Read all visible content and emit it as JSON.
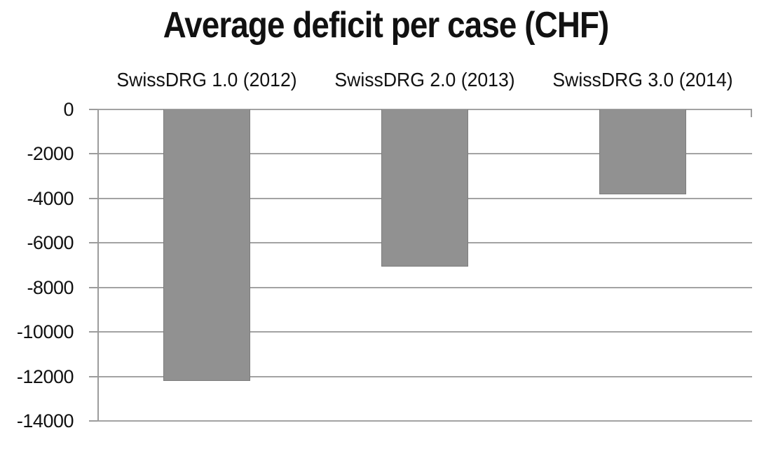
{
  "title": "Average deficit per case (CHF)",
  "chart_data": {
    "type": "bar",
    "title": "Average deficit per case (CHF)",
    "categories": [
      "SwissDRG 1.0 (2012)",
      "SwissDRG 2.0 (2013)",
      "SwissDRG 3.0 (2014)"
    ],
    "values": [
      -12200,
      -7050,
      -3800
    ],
    "xlabel": "",
    "ylabel": "",
    "ylim": [
      -14000,
      0
    ],
    "ytick_step": 2000,
    "yticks": [
      0,
      -2000,
      -4000,
      -6000,
      -8000,
      -10000,
      -12000,
      -14000
    ],
    "ytick_labels": [
      "0",
      "-2000",
      "-4000",
      "-6000",
      "-8000",
      "-10000",
      "-12000",
      "-14000"
    ],
    "grid": true,
    "legend": false,
    "bar_color": "#919191",
    "bar_border_color": "#7d7d7d",
    "gridline_color": "#a3a3a3",
    "axis_color": "#9c9c9c",
    "text_color": "#111111",
    "background": "#ffffff"
  }
}
